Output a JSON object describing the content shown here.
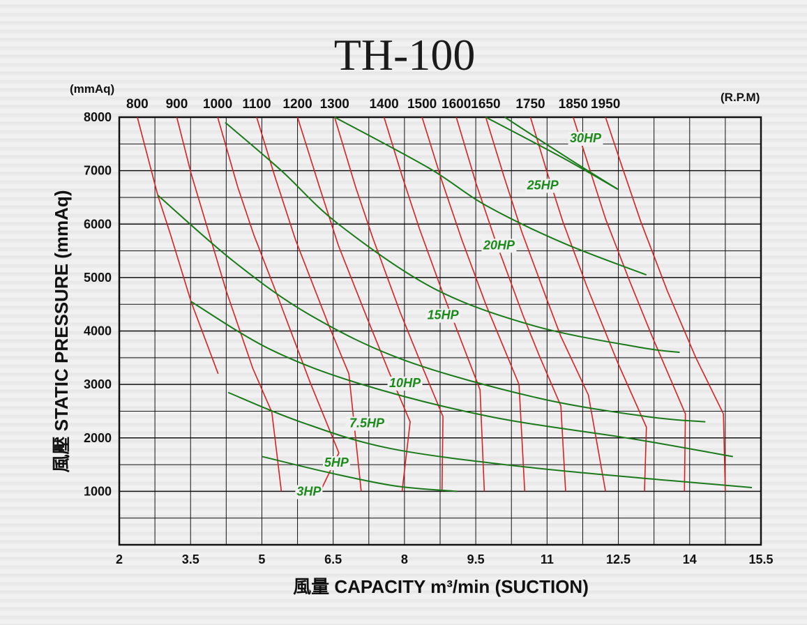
{
  "chart_data": {
    "type": "line",
    "title": "TH-100",
    "y_unit": "(mmAq)",
    "rpm_unit": "(R.P.M)",
    "xlabel": "風量  CAPACITY  m³/min (SUCTION)",
    "ylabel": "風壓  STATIC  PRESSURE  (mmAq)",
    "x_ticks": [
      2,
      3.5,
      5,
      6.5,
      8,
      9.5,
      11,
      12.5,
      14,
      15.5
    ],
    "x_tick_labels": [
      "2",
      "3.5",
      "5",
      "6.5",
      "8",
      "9.5",
      "11",
      "12.5",
      "14",
      "15.5"
    ],
    "y_ticks": [
      1000,
      2000,
      3000,
      4000,
      5000,
      6000,
      7000,
      8000
    ],
    "y_tick_labels": [
      "1000",
      "2000",
      "3000",
      "4000",
      "5000",
      "6000",
      "7000",
      "8000"
    ],
    "xlim": [
      2,
      15.5
    ],
    "ylim": [
      0,
      8000
    ],
    "grid": true,
    "rpm_lines": [
      {
        "name": "800",
        "points": [
          [
            2.38,
            8000
          ],
          [
            2.81,
            6540
          ],
          [
            3.08,
            5800
          ],
          [
            3.51,
            4550
          ],
          [
            4.08,
            3200
          ]
        ]
      },
      {
        "name": "900",
        "points": [
          [
            3.21,
            8000
          ],
          [
            3.51,
            6950
          ],
          [
            4.25,
            4750
          ],
          [
            4.81,
            3300
          ],
          [
            5.21,
            2480
          ],
          [
            5.41,
            1000
          ]
        ]
      },
      {
        "name": "1000",
        "points": [
          [
            4.07,
            8000
          ],
          [
            4.49,
            6700
          ],
          [
            4.83,
            5800
          ],
          [
            5.31,
            4700
          ],
          [
            6.01,
            3050
          ],
          [
            6.62,
            1720
          ],
          [
            6.23,
            1000
          ]
        ]
      },
      {
        "name": "1100",
        "points": [
          [
            4.89,
            8000
          ],
          [
            5.27,
            6900
          ],
          [
            5.71,
            5700
          ],
          [
            6.41,
            4100
          ],
          [
            6.83,
            3200
          ],
          [
            7.09,
            1000
          ]
        ]
      },
      {
        "name": "1200",
        "points": [
          [
            5.75,
            8000
          ],
          [
            6.21,
            6700
          ],
          [
            6.61,
            5600
          ],
          [
            7.21,
            4250
          ],
          [
            7.69,
            3200
          ],
          [
            8.12,
            2300
          ],
          [
            7.95,
            1000
          ]
        ]
      },
      {
        "name": "1300",
        "points": [
          [
            6.53,
            8000
          ],
          [
            6.97,
            6700
          ],
          [
            7.33,
            5750
          ],
          [
            7.91,
            4350
          ],
          [
            8.39,
            3300
          ],
          [
            8.81,
            2400
          ],
          [
            8.79,
            1000
          ]
        ]
      },
      {
        "name": "1400",
        "points": [
          [
            7.57,
            8000
          ],
          [
            7.95,
            6900
          ],
          [
            8.32,
            5900
          ],
          [
            8.79,
            4750
          ],
          [
            9.33,
            3500
          ],
          [
            9.59,
            2900
          ],
          [
            9.68,
            1000
          ]
        ]
      },
      {
        "name": "1500",
        "points": [
          [
            8.37,
            8000
          ],
          [
            8.79,
            6800
          ],
          [
            9.21,
            5700
          ],
          [
            9.71,
            4500
          ],
          [
            10.41,
            3000
          ],
          [
            10.53,
            1000
          ]
        ]
      },
      {
        "name": "1600",
        "points": [
          [
            9.09,
            8000
          ],
          [
            9.51,
            6750
          ],
          [
            9.89,
            5750
          ],
          [
            10.49,
            4300
          ],
          [
            10.83,
            3550
          ],
          [
            11.29,
            2600
          ],
          [
            11.39,
            1000
          ]
        ]
      },
      {
        "name": "1650",
        "points": [
          [
            9.71,
            8000
          ],
          [
            10.09,
            6900
          ],
          [
            10.47,
            5850
          ],
          [
            10.97,
            4650
          ],
          [
            11.29,
            3900
          ],
          [
            11.87,
            2800
          ],
          [
            12.23,
            1000
          ]
        ]
      },
      {
        "name": "1750",
        "points": [
          [
            10.65,
            8000
          ],
          [
            10.99,
            7000
          ],
          [
            11.33,
            6050
          ],
          [
            11.83,
            4850
          ],
          [
            12.49,
            3400
          ],
          [
            13.09,
            2200
          ],
          [
            13.05,
            1000
          ]
        ]
      },
      {
        "name": "1850",
        "points": [
          [
            11.55,
            8000
          ],
          [
            11.87,
            7100
          ],
          [
            12.23,
            6100
          ],
          [
            12.73,
            4950
          ],
          [
            13.21,
            3900
          ],
          [
            13.91,
            2450
          ],
          [
            13.89,
            1000
          ]
        ]
      },
      {
        "name": "1950",
        "points": [
          [
            12.23,
            8000
          ],
          [
            12.53,
            7200
          ],
          [
            12.97,
            6050
          ],
          [
            13.53,
            4750
          ],
          [
            14.13,
            3500
          ],
          [
            14.71,
            2450
          ],
          [
            14.75,
            1000
          ]
        ]
      }
    ],
    "series": [
      {
        "name": "3HP",
        "points": [
          [
            5.01,
            1650
          ],
          [
            6.41,
            1350
          ],
          [
            7.81,
            1100
          ],
          [
            9.11,
            1000
          ]
        ]
      },
      {
        "name": "5HP",
        "points": [
          [
            4.29,
            2850
          ],
          [
            5.81,
            2300
          ],
          [
            7.71,
            1800
          ],
          [
            10.61,
            1450
          ],
          [
            13.61,
            1200
          ],
          [
            15.31,
            1070
          ]
        ]
      },
      {
        "name": "7.5HP",
        "points": [
          [
            3.51,
            4550
          ],
          [
            5.19,
            3650
          ],
          [
            7.11,
            3000
          ],
          [
            9.79,
            2400
          ],
          [
            12.81,
            1980
          ],
          [
            14.91,
            1650
          ]
        ]
      },
      {
        "name": "10HP",
        "points": [
          [
            2.81,
            6540
          ],
          [
            4.41,
            5300
          ],
          [
            6.01,
            4300
          ],
          [
            8.01,
            3450
          ],
          [
            10.79,
            2750
          ],
          [
            13.09,
            2400
          ],
          [
            14.33,
            2300
          ]
        ]
      },
      {
        "name": "15HP",
        "points": [
          [
            4.23,
            7900
          ],
          [
            5.41,
            7000
          ],
          [
            6.61,
            6000
          ],
          [
            8.61,
            4800
          ],
          [
            10.71,
            4100
          ],
          [
            12.91,
            3700
          ],
          [
            13.79,
            3600
          ]
        ]
      },
      {
        "name": "20HP",
        "points": [
          [
            6.53,
            8000
          ],
          [
            8.51,
            7050
          ],
          [
            9.71,
            6350
          ],
          [
            11.33,
            5650
          ],
          [
            13.09,
            5050
          ]
        ]
      },
      {
        "name": "25HP",
        "points": [
          [
            9.71,
            8000
          ],
          [
            11.31,
            7250
          ],
          [
            12.49,
            6650
          ]
        ]
      },
      {
        "name": "30HP",
        "points": []
      }
    ],
    "hp_labels": [
      {
        "text": "30HP",
        "x": 11.81,
        "y": 7530
      },
      {
        "text": "25HP",
        "x": 10.91,
        "y": 6650
      },
      {
        "text": "20HP",
        "x": 9.99,
        "y": 5530
      },
      {
        "text": "15HP",
        "x": 8.81,
        "y": 4220
      },
      {
        "text": "10HP",
        "x": 8.01,
        "y": 2950
      },
      {
        "text": "7.5HP",
        "x": 7.21,
        "y": 2200
      },
      {
        "text": "5HP",
        "x": 6.57,
        "y": 1460
      },
      {
        "text": "3HP",
        "x": 5.99,
        "y": 920
      }
    ],
    "rpm_label_x": [
      2.38,
      3.21,
      4.07,
      4.89,
      5.75,
      6.53,
      7.57,
      8.37,
      9.09,
      9.71,
      10.65,
      11.55,
      12.23
    ],
    "colors": {
      "rpm_line": "#d82020",
      "hp_line": "#1a7a1a",
      "hp_label": "#1a8a1a",
      "grid": "#111111"
    }
  }
}
